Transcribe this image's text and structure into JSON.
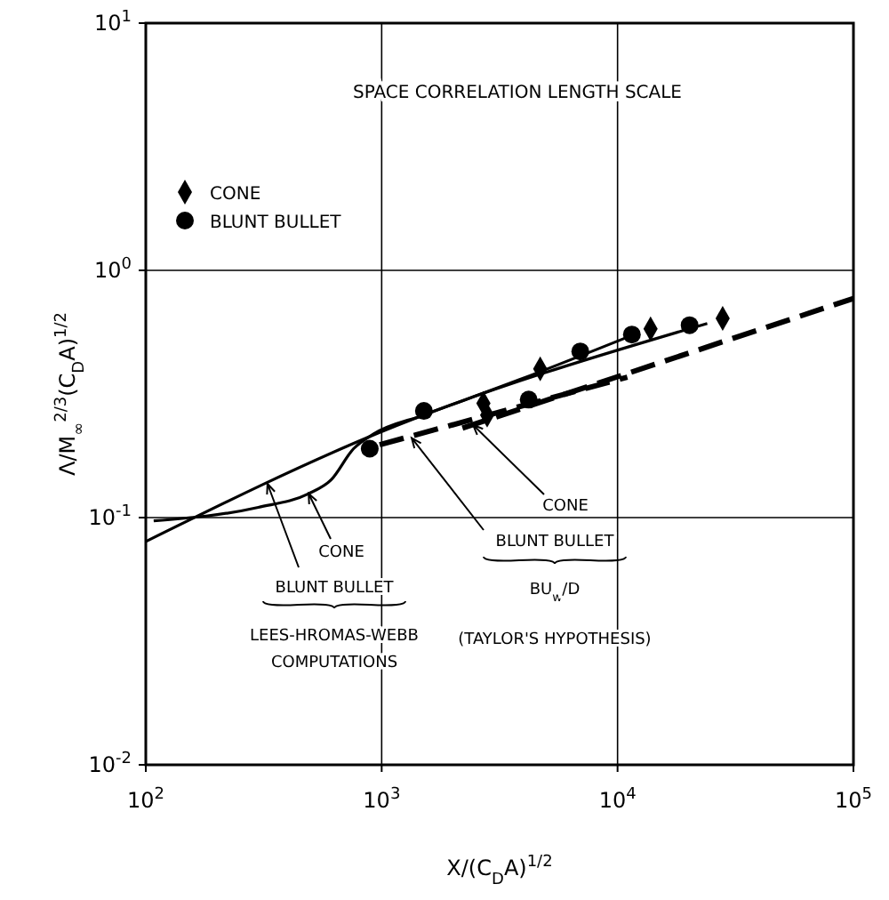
{
  "chart_data": {
    "type": "scatter",
    "title": "SPACE CORRELATION LENGTH SCALE",
    "xlabel": "X/(C$_{D}$A)$^{1/2}$",
    "ylabel": "Λ/M$_{∞}$$^{2/3}$(C$_{D}$A)$^{1/2}$",
    "log": "xy",
    "grid": true,
    "legend": "top left",
    "xlim": [
      100,
      100000
    ],
    "ylim": [
      0.01,
      10
    ],
    "xticks": [
      {
        "value": 100,
        "label": "10$^{2}$"
      },
      {
        "value": 1000,
        "label": "10$^{3}$"
      },
      {
        "value": 10000,
        "label": "10$^{4}$"
      },
      {
        "value": 100000,
        "label": "10$^{5}$"
      }
    ],
    "yticks": [
      {
        "value": 0.01,
        "label": "10$^{-2}$"
      },
      {
        "value": 0.1,
        "label": "10$^{-1}$"
      },
      {
        "value": 1,
        "label": "10$^{0}$"
      },
      {
        "value": 10,
        "label": "10$^{1}$"
      }
    ],
    "series": [
      {
        "name": "CONE",
        "marker": "diamond",
        "color": "#000000",
        "x": [
          2700,
          2800,
          4700,
          13800,
          27900
        ],
        "values": [
          0.29,
          0.26,
          0.4,
          0.58,
          0.64
        ]
      },
      {
        "name": "BLUNT BULLET",
        "marker": "circle",
        "color": "#000000",
        "x": [
          890,
          1510,
          4200,
          6950,
          11500,
          20200
        ],
        "values": [
          0.19,
          0.27,
          0.3,
          0.47,
          0.55,
          0.6
        ]
      },
      {
        "type": "line",
        "marker": "none",
        "line_style": "solid",
        "color": "#000000",
        "x": [
          108,
          300,
          490,
          610,
          760,
          925,
          1510,
          3800,
          12300
        ],
        "values": [
          0.097,
          0.11,
          0.125,
          0.142,
          0.19,
          0.218,
          0.26,
          0.36,
          0.56
        ]
      },
      {
        "type": "line",
        "marker": "none",
        "line_style": "solid",
        "color": "#000000",
        "x": [
          100,
          970,
          24000
        ],
        "values": [
          0.08,
          0.22,
          0.61
        ]
      },
      {
        "type": "line",
        "marker": "none",
        "line_style": "dashed",
        "color": "#000000",
        "x": [
          980,
          11000
        ],
        "values": [
          0.197,
          0.37
        ]
      },
      {
        "type": "line",
        "marker": "none",
        "line_style": "dashed",
        "color": "#000000",
        "x": [
          2200,
          100000
        ],
        "values": [
          0.23,
          0.77
        ]
      }
    ],
    "annotations": [
      {
        "text": "CONE",
        "x": 490,
        "y": 0.125
      },
      {
        "text": "BLUNT BULLET",
        "x": 328,
        "y": 0.137
      },
      "LEES-HROMAS-WEBB COMPUTATIONS",
      {
        "text": "CONE",
        "x": 2440,
        "y": 0.237
      },
      {
        "text": "BLUNT BULLET",
        "x": 1340,
        "y": 0.21
      },
      "BU$_{w}$/D",
      "(TAYLOR'S HYPOTHESIS)"
    ]
  }
}
